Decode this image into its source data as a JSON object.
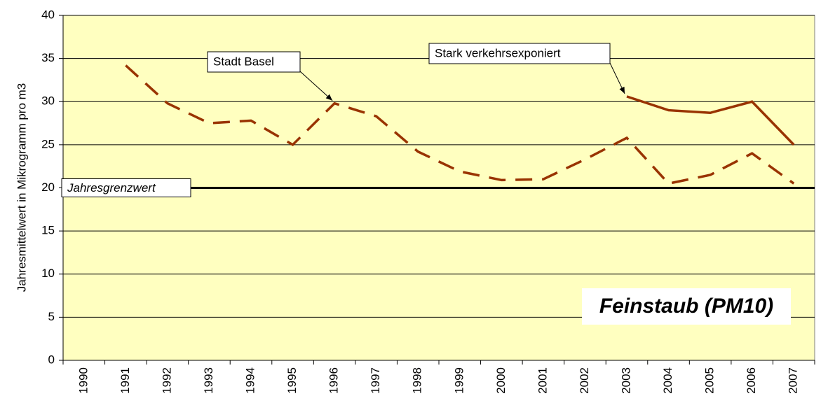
{
  "chart_data": {
    "type": "line",
    "title": "Feinstaub (PM10)",
    "y_label": "Jahresmittelwert in Mikrogramm pro m3",
    "categories": [
      "1990",
      "1991",
      "1992",
      "1993",
      "1994",
      "1995",
      "1996",
      "1997",
      "1998",
      "1999",
      "2000",
      "2001",
      "2002",
      "2003",
      "2004",
      "2005",
      "2006",
      "2007"
    ],
    "series": [
      {
        "name": "Stadt Basel",
        "color": "#993300",
        "dashed": true,
        "values": [
          null,
          34.2,
          29.8,
          27.5,
          27.8,
          25.0,
          29.8,
          28.3,
          24.2,
          21.9,
          20.9,
          21.0,
          23.3,
          25.8,
          20.5,
          21.5,
          24.0,
          20.5
        ]
      },
      {
        "name": "Stark verkehrsexponiert",
        "color": "#993300",
        "dashed": false,
        "values": [
          null,
          null,
          null,
          null,
          null,
          null,
          null,
          null,
          null,
          null,
          null,
          null,
          null,
          30.6,
          29.0,
          28.7,
          30.0,
          25.0
        ]
      }
    ],
    "threshold": {
      "label": "Jahresgrenzwert",
      "value": 20,
      "color": "#000000"
    },
    "ylim": [
      0,
      40
    ],
    "yticks": [
      0,
      5,
      10,
      15,
      20,
      25,
      30,
      35,
      40
    ],
    "grid": true,
    "background": "#ffffc0"
  }
}
